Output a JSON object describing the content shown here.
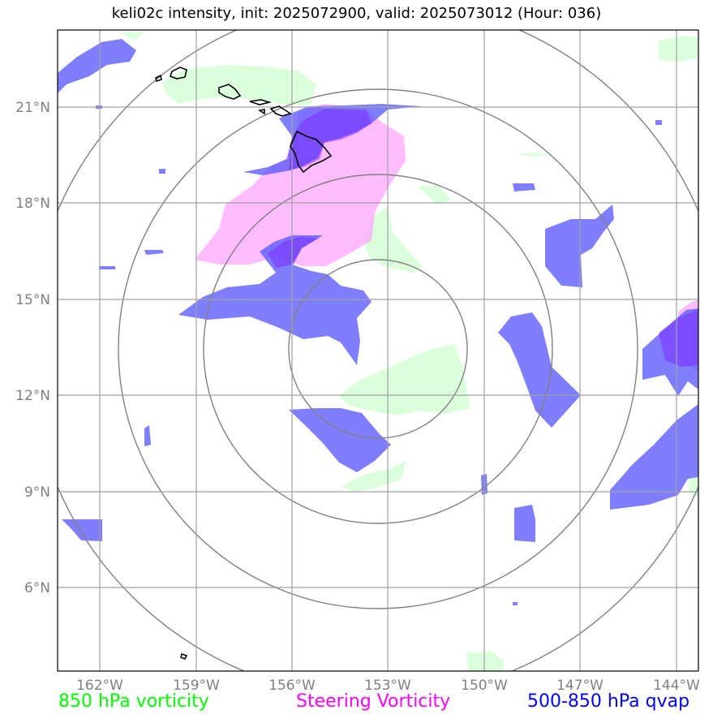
{
  "title": "keli02c intensity, init: 2025072900, valid: 2025073012 (Hour: 036)",
  "lat_ticks": [
    "21°N",
    "18°N",
    "15°N",
    "12°N",
    "9°N",
    "6°N"
  ],
  "lon_ticks": [
    "162°W",
    "159°W",
    "156°W",
    "153°W",
    "150°W",
    "147°W",
    "144°W"
  ],
  "legend": {
    "vorticity_850": {
      "label": "850 hPa vorticity",
      "color": "#00ff00"
    },
    "steering": {
      "label": "Steering Vorticity",
      "color": "#ff00ff"
    },
    "qvap": {
      "label": "500-850 hPa qvap",
      "color": "#0000ff"
    }
  },
  "map": {
    "extent_lon": [
      -163.3,
      -143.3
    ],
    "extent_lat": [
      3.5,
      23.5
    ],
    "center": {
      "lon": -153.0,
      "lat": 13.5
    },
    "range_rings": 4,
    "gridlines": true
  }
}
